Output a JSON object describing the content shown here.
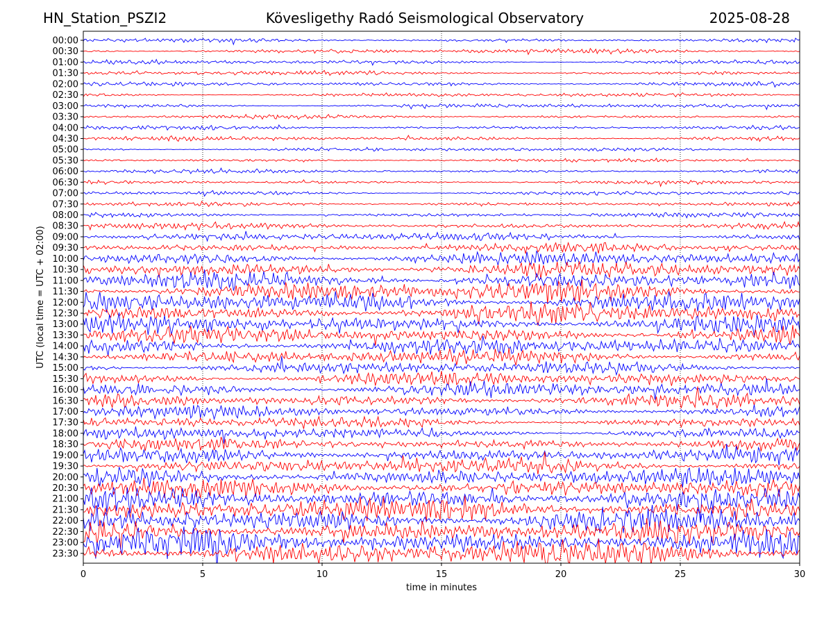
{
  "header": {
    "station": "HN_Station_PSZI2",
    "observatory": "Kövesligethy Radó Seismological Observatory",
    "date": "2025-08-28"
  },
  "chart_data": {
    "type": "line",
    "subtype": "helicorder",
    "xlabel": "time in minutes",
    "ylabel": "UTC (local time = UTC + 02:00)",
    "xlim": [
      0,
      30
    ],
    "x_ticks": [
      "0",
      "5",
      "10",
      "15",
      "20",
      "25",
      "30"
    ],
    "x_tick_values": [
      0,
      5,
      10,
      15,
      20,
      25,
      30
    ],
    "vertical_gridlines_at": [
      5,
      10,
      15,
      20,
      25
    ],
    "row_labels": [
      "00:00",
      "00:30",
      "01:00",
      "01:30",
      "02:00",
      "02:30",
      "03:00",
      "03:30",
      "04:00",
      "04:30",
      "05:00",
      "05:30",
      "06:00",
      "06:30",
      "07:00",
      "07:30",
      "08:00",
      "08:30",
      "09:00",
      "09:30",
      "10:00",
      "10:30",
      "11:00",
      "11:30",
      "12:00",
      "12:30",
      "13:00",
      "13:30",
      "14:00",
      "14:30",
      "15:00",
      "15:30",
      "16:00",
      "16:30",
      "17:00",
      "17:30",
      "18:00",
      "18:30",
      "19:00",
      "19:30",
      "20:00",
      "20:30",
      "21:00",
      "21:30",
      "22:00",
      "22:30",
      "23:00",
      "23:30"
    ],
    "trace_colors": [
      "#0000ff",
      "#ff0000"
    ],
    "relative_activity": [
      0.1,
      0.14,
      0.12,
      0.14,
      0.12,
      0.1,
      0.12,
      0.1,
      0.12,
      0.14,
      0.1,
      0.08,
      0.1,
      0.1,
      0.12,
      0.12,
      0.14,
      0.25,
      0.35,
      0.45,
      0.65,
      0.75,
      0.9,
      1.0,
      1.0,
      0.95,
      0.9,
      0.85,
      0.8,
      0.7,
      0.6,
      0.6,
      0.7,
      0.6,
      0.55,
      0.5,
      0.55,
      0.6,
      0.7,
      0.75,
      0.9,
      1.0,
      1.1,
      1.2,
      1.25,
      1.25,
      1.3,
      1.3
    ]
  }
}
